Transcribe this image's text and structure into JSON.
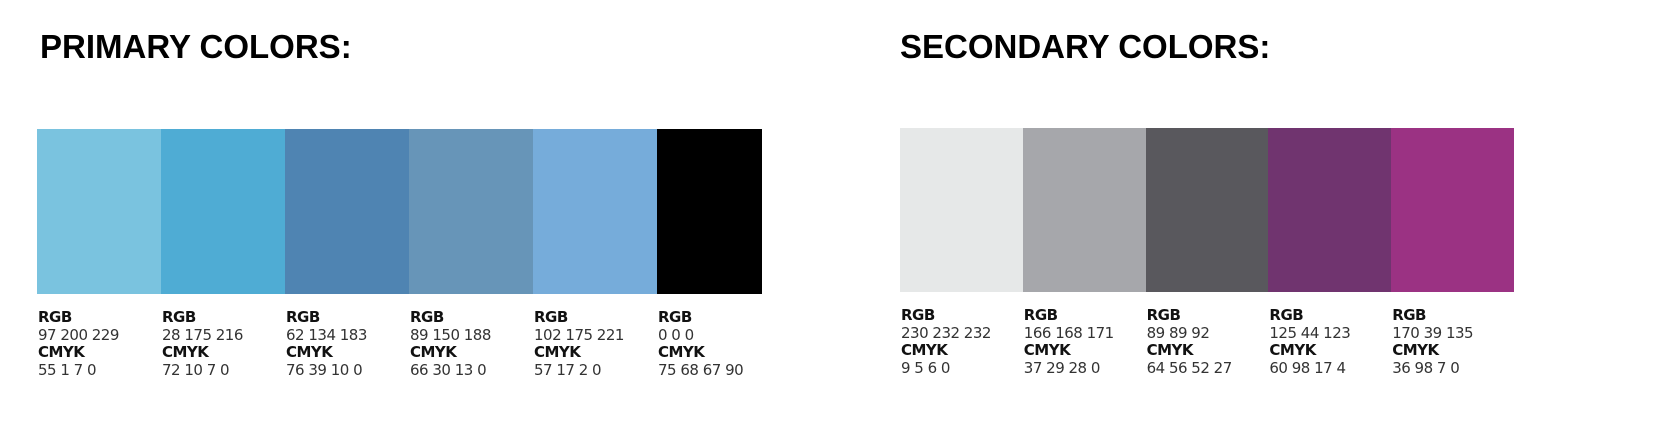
{
  "primary": {
    "title": "PRIMARY COLORS:",
    "swatches": [
      {
        "color": "#7AC3DF",
        "rgb_label": "RGB",
        "rgb": "97 200 229",
        "cmyk_label": "CMYK",
        "cmyk": "55 1 7 0"
      },
      {
        "color": "#4FACD4",
        "rgb_label": "RGB",
        "rgb": "28 175 216",
        "cmyk_label": "CMYK",
        "cmyk": "72 10 7 0"
      },
      {
        "color": "#4F84B2",
        "rgb_label": "RGB",
        "rgb": "62 134 183",
        "cmyk_label": "CMYK",
        "cmyk": "76 39 10 0"
      },
      {
        "color": "#6795B8",
        "rgb_label": "RGB",
        "rgb": "89 150 188",
        "cmyk_label": "CMYK",
        "cmyk": "66 30 13 0"
      },
      {
        "color": "#76ACDA",
        "rgb_label": "RGB",
        "rgb": "102 175 221",
        "cmyk_label": "CMYK",
        "cmyk": "57 17 2 0"
      },
      {
        "color": "#000000",
        "rgb_label": "RGB",
        "rgb": "0 0 0",
        "cmyk_label": "CMYK",
        "cmyk": "75 68 67 90"
      }
    ]
  },
  "secondary": {
    "title": "SECONDARY COLORS:",
    "swatches": [
      {
        "color": "#E6E8E8",
        "rgb_label": "RGB",
        "rgb": "230 232 232",
        "cmyk_label": "CMYK",
        "cmyk": "9 5 6 0"
      },
      {
        "color": "#A6A7AB",
        "rgb_label": "RGB",
        "rgb": "166 168 171",
        "cmyk_label": "CMYK",
        "cmyk": "37 29 28 0"
      },
      {
        "color": "#59585D",
        "rgb_label": "RGB",
        "rgb": "89 89 92",
        "cmyk_label": "CMYK",
        "cmyk": "64 56 52 27"
      },
      {
        "color": "#70346F",
        "rgb_label": "RGB",
        "rgb": "125 44 123",
        "cmyk_label": "CMYK",
        "cmyk": "60 98 17 4"
      },
      {
        "color": "#9B3283",
        "rgb_label": "RGB",
        "rgb": "170 39 135",
        "cmyk_label": "CMYK",
        "cmyk": "36 98 7 0"
      }
    ]
  }
}
